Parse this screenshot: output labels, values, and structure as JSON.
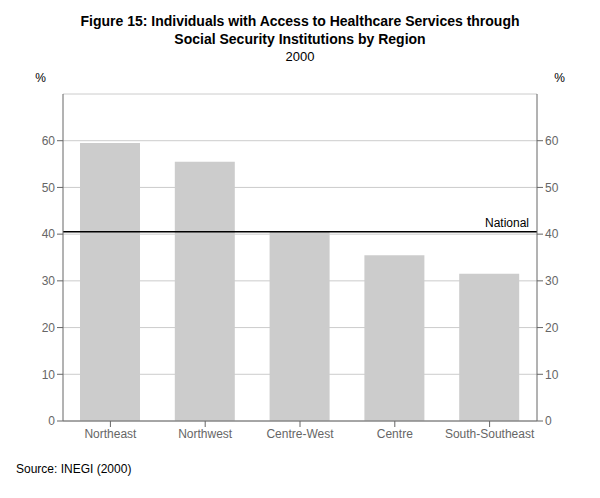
{
  "chart_data": {
    "type": "bar",
    "title": [
      "Figure 15: Individuals with Access to Healthcare Services through",
      "Social Security Institutions by Region"
    ],
    "subtitle": "2000",
    "categories": [
      "Northeast",
      "Northwest",
      "Centre-West",
      "Centre",
      "South-Southeast"
    ],
    "values": [
      59.5,
      55.5,
      40.5,
      35.5,
      31.5
    ],
    "color": "#cccccc",
    "ylim": [
      0,
      70
    ],
    "yticks": [
      0,
      10,
      20,
      30,
      40,
      50,
      60
    ],
    "y2lim": [
      0,
      70
    ],
    "y2ticks": [
      0,
      10,
      20,
      30,
      40,
      50,
      60
    ],
    "ylabel": "%",
    "y2label": "%",
    "grid": true,
    "annotations": [
      {
        "text": "National",
        "y": 40.5
      }
    ],
    "source": "Source: INEGI (2000)"
  }
}
